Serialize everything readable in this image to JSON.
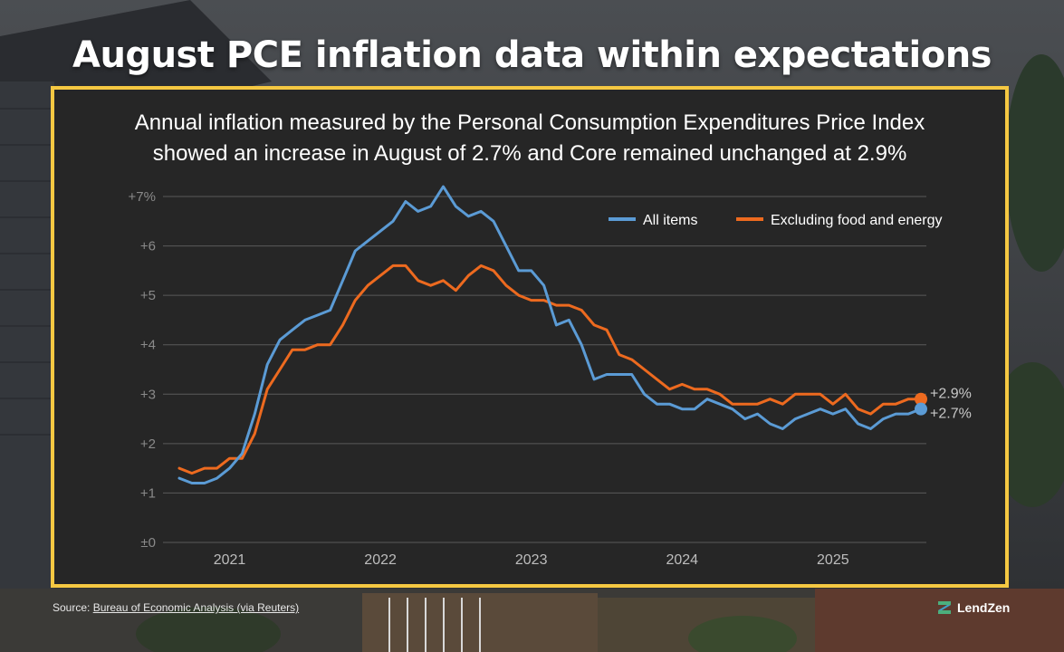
{
  "title": "August PCE inflation data within expectations",
  "subtitle_line1": "Annual inflation measured by the Personal Consumption Expenditures Price Index",
  "subtitle_line2": "showed an increase in August of 2.7% and Core remained unchanged at 2.9%",
  "source_label": "Source:",
  "source_link": "Bureau of Economic Analysis (via Reuters)",
  "brand": "LendZen",
  "colors": {
    "all_items": "#5b9bd5",
    "core": "#ed6a1f",
    "border": "#f5c842",
    "panel": "#262626",
    "grid": "#5a5a5a"
  },
  "chart_data": {
    "type": "line",
    "ylim": [
      0,
      7
    ],
    "yticks": [
      {
        "value": 0,
        "label": "±0"
      },
      {
        "value": 1,
        "label": "+1"
      },
      {
        "value": 2,
        "label": "+2"
      },
      {
        "value": 3,
        "label": "+3"
      },
      {
        "value": 4,
        "label": "+4"
      },
      {
        "value": 5,
        "label": "+5"
      },
      {
        "value": 6,
        "label": "+6"
      },
      {
        "value": 7,
        "label": "+7%"
      }
    ],
    "x_start": "2020-09",
    "xticks": [
      {
        "index": 4,
        "label": "2021"
      },
      {
        "index": 16,
        "label": "2022"
      },
      {
        "index": 28,
        "label": "2023"
      },
      {
        "index": 40,
        "label": "2024"
      },
      {
        "index": 52,
        "label": "2025"
      }
    ],
    "legend_position": "top-right",
    "series": [
      {
        "name": "All items",
        "end_label": "+2.7%",
        "values": [
          1.3,
          1.2,
          1.2,
          1.3,
          1.5,
          1.8,
          2.6,
          3.6,
          4.1,
          4.3,
          4.5,
          4.6,
          4.7,
          5.3,
          5.9,
          6.1,
          6.3,
          6.5,
          6.9,
          6.7,
          6.8,
          7.2,
          6.8,
          6.6,
          6.7,
          6.5,
          6.0,
          5.5,
          5.5,
          5.2,
          4.4,
          4.5,
          4.0,
          3.3,
          3.4,
          3.4,
          3.4,
          3.0,
          2.8,
          2.8,
          2.7,
          2.7,
          2.9,
          2.8,
          2.7,
          2.5,
          2.6,
          2.4,
          2.3,
          2.5,
          2.6,
          2.7,
          2.6,
          2.7,
          2.4,
          2.3,
          2.5,
          2.6,
          2.6,
          2.7
        ]
      },
      {
        "name": "Excluding food and energy",
        "end_label": "+2.9%",
        "values": [
          1.5,
          1.4,
          1.5,
          1.5,
          1.7,
          1.7,
          2.2,
          3.1,
          3.5,
          3.9,
          3.9,
          4.0,
          4.0,
          4.4,
          4.9,
          5.2,
          5.4,
          5.6,
          5.6,
          5.3,
          5.2,
          5.3,
          5.1,
          5.4,
          5.6,
          5.5,
          5.2,
          5.0,
          4.9,
          4.9,
          4.8,
          4.8,
          4.7,
          4.4,
          4.3,
          3.8,
          3.7,
          3.5,
          3.3,
          3.1,
          3.2,
          3.1,
          3.1,
          3.0,
          2.8,
          2.8,
          2.8,
          2.9,
          2.8,
          3.0,
          3.0,
          3.0,
          2.8,
          3.0,
          2.7,
          2.6,
          2.8,
          2.8,
          2.9,
          2.9
        ]
      }
    ]
  }
}
